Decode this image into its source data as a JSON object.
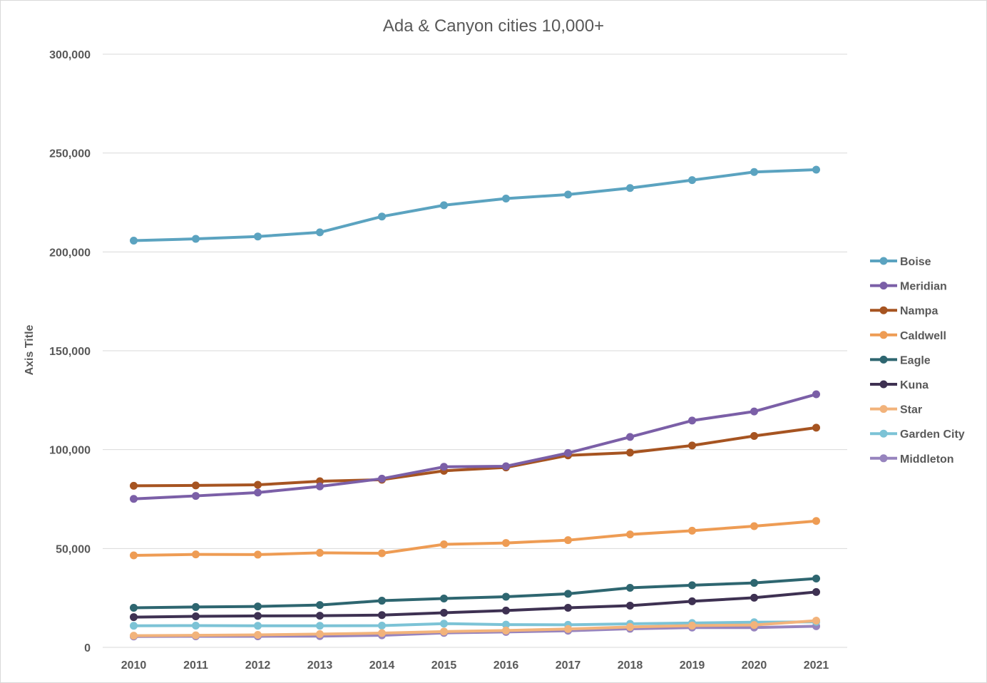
{
  "chart_data": {
    "type": "line",
    "title": "Ada & Canyon cities 10,000+",
    "xlabel": "",
    "ylabel": "Axis Title",
    "ylim": [
      0,
      300000
    ],
    "y_ticks": [
      "0",
      "50,000",
      "100,000",
      "150,000",
      "200,000",
      "250,000",
      "300,000"
    ],
    "grid": true,
    "legend_position": "right",
    "categories": [
      "2010",
      "2011",
      "2012",
      "2013",
      "2014",
      "2015",
      "2016",
      "2017",
      "2018",
      "2019",
      "2020",
      "2021"
    ],
    "series": [
      {
        "name": "Boise",
        "color": "#5ba3c0",
        "values": [
          205700,
          206600,
          207800,
          209900,
          217900,
          223600,
          227000,
          229000,
          232300,
          236300,
          240400,
          241600
        ]
      },
      {
        "name": "Meridian",
        "color": "#7b5fa7",
        "values": [
          75100,
          76600,
          78300,
          81400,
          85300,
          91300,
          91600,
          98300,
          106400,
          114700,
          119300,
          128000
        ]
      },
      {
        "name": "Nampa",
        "color": "#a65421",
        "values": [
          81700,
          81900,
          82200,
          84000,
          84800,
          89300,
          91000,
          97100,
          98500,
          102100,
          106900,
          111100
        ]
      },
      {
        "name": "Caldwell",
        "color": "#ee9c54",
        "values": [
          46500,
          47000,
          46900,
          47800,
          47600,
          52100,
          52800,
          54200,
          57100,
          59000,
          61300,
          63900
        ]
      },
      {
        "name": "Eagle",
        "color": "#2e6670",
        "values": [
          20000,
          20400,
          20700,
          21400,
          23600,
          24700,
          25600,
          27100,
          30100,
          31400,
          32600,
          34800
        ]
      },
      {
        "name": "Kuna",
        "color": "#3e3152",
        "values": [
          15300,
          15700,
          15900,
          16000,
          16300,
          17500,
          18600,
          20000,
          21100,
          23300,
          25100,
          28000
        ]
      },
      {
        "name": "Star",
        "color": "#f2b37b",
        "values": [
          5900,
          6100,
          6300,
          6700,
          7200,
          8000,
          8500,
          9300,
          10300,
          11000,
          11300,
          13500
        ]
      },
      {
        "name": "Garden City",
        "color": "#7cc3d6",
        "values": [
          10900,
          11000,
          10900,
          10900,
          11000,
          12000,
          11500,
          11400,
          11900,
          12300,
          12700,
          12900
        ]
      },
      {
        "name": "Middleton",
        "color": "#9784be",
        "values": [
          5500,
          5600,
          5600,
          5700,
          6100,
          7300,
          7800,
          8400,
          9400,
          10000,
          10000,
          10700
        ]
      }
    ]
  }
}
